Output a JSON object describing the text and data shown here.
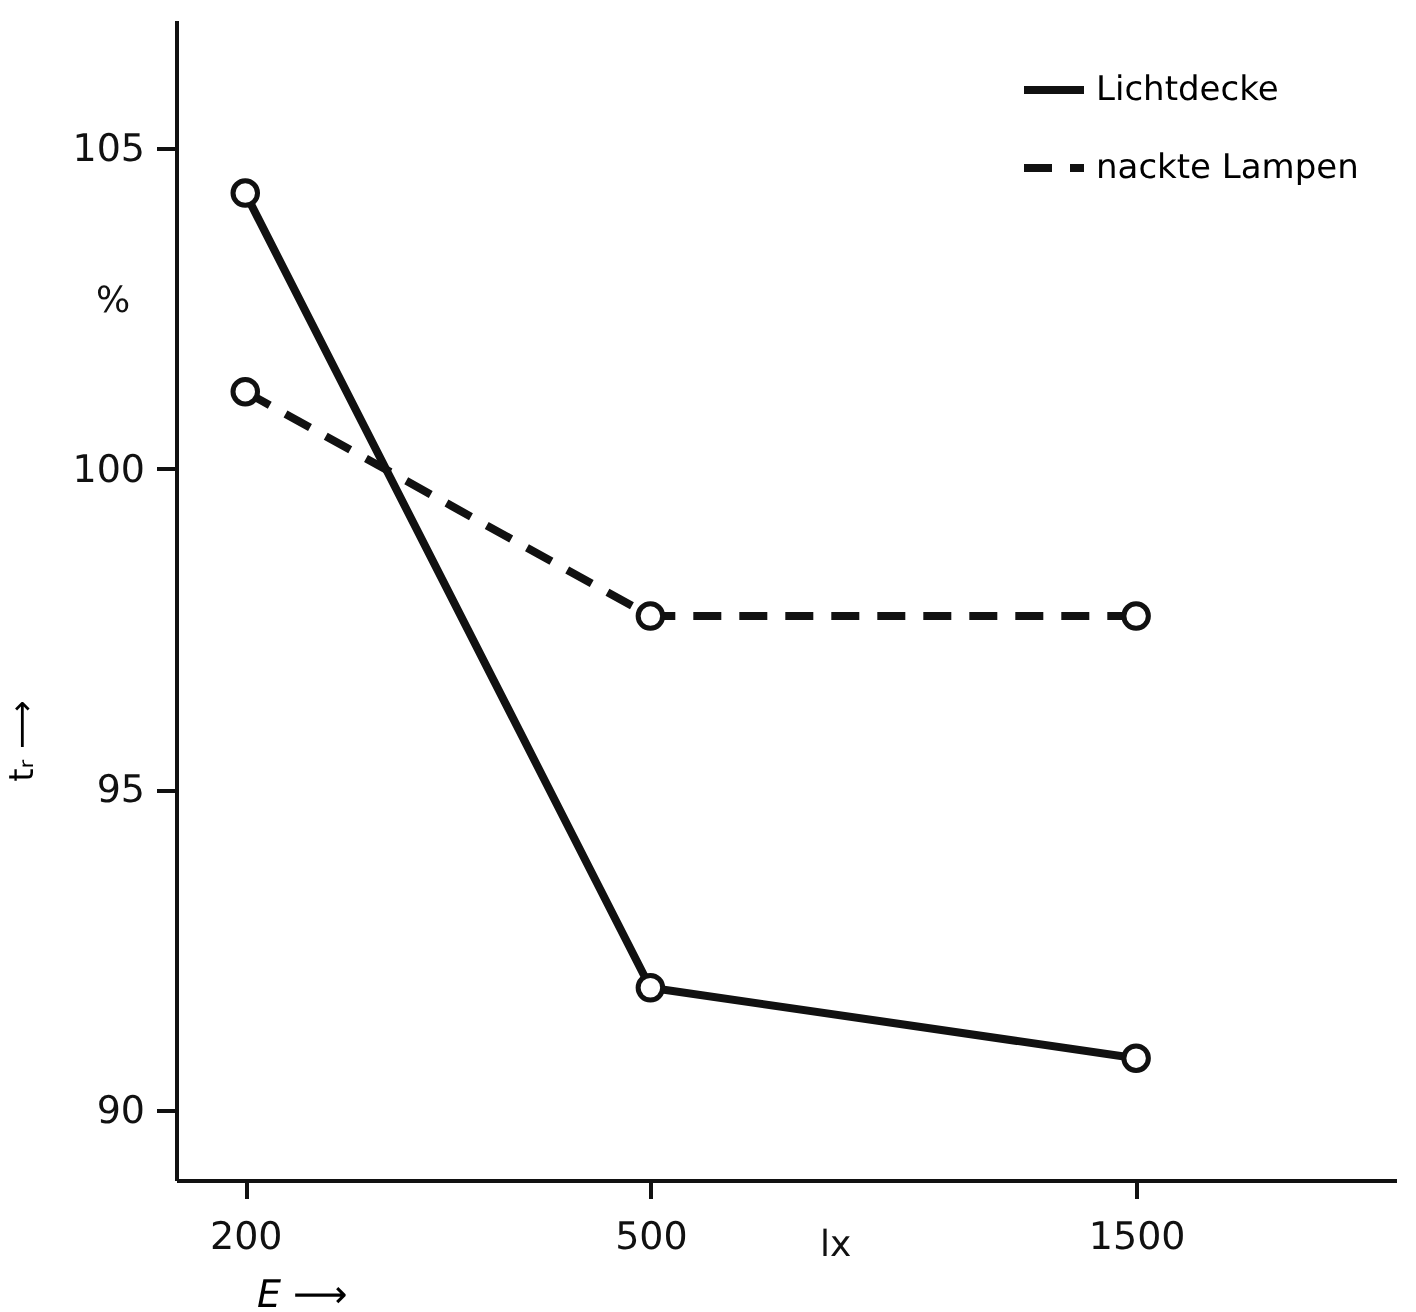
{
  "chart_data": {
    "type": "line",
    "xlabel": "E ⟶",
    "ylabel": "tᵣ ⟶",
    "annotations": [
      "%",
      "lx"
    ],
    "x": [
      200,
      500,
      1500
    ],
    "log": "x",
    "xlim": [
      171,
      2700
    ],
    "xticks": [
      200,
      500,
      1500
    ],
    "ylim": [
      88.9,
      107
    ],
    "yticks": [
      90,
      95,
      100,
      105
    ],
    "series": [
      {
        "name": "Lichtdecke",
        "color": "#111111",
        "line_style": "solid",
        "values": [
          104.3,
          91.9,
          90.8
        ]
      },
      {
        "name": "nackte Lampen",
        "color": "#111111",
        "line_style": "dashed",
        "values": [
          101.2,
          97.7,
          97.7
        ]
      }
    ],
    "marker": "circle",
    "legend": "top right",
    "grid": false
  }
}
